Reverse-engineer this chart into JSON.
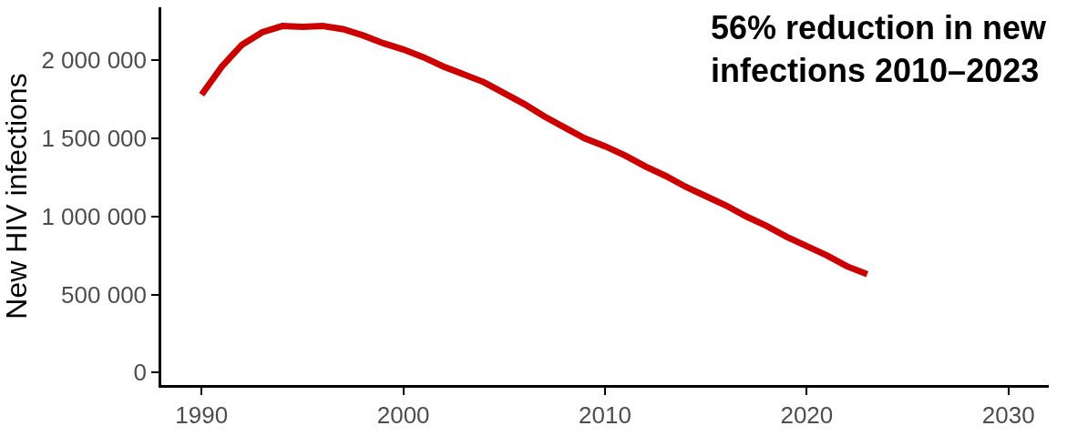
{
  "chart_data": {
    "type": "line",
    "ylabel": "New HIV infections",
    "annotations": [
      "56% reduction in new\ninfections 2010–2023"
    ],
    "x": [
      1990,
      1991,
      1992,
      1993,
      1994,
      1995,
      1996,
      1997,
      1998,
      1999,
      2000,
      2001,
      2002,
      2003,
      2004,
      2005,
      2006,
      2007,
      2008,
      2009,
      2010,
      2011,
      2012,
      2013,
      2014,
      2015,
      2016,
      2017,
      2018,
      2019,
      2020,
      2021,
      2022,
      2023
    ],
    "series": [
      {
        "color": "#cc0000",
        "values": [
          1780000,
          1960000,
          2100000,
          2180000,
          2220000,
          2215000,
          2220000,
          2200000,
          2160000,
          2110000,
          2070000,
          2020000,
          1960000,
          1910000,
          1860000,
          1790000,
          1720000,
          1640000,
          1570000,
          1500000,
          1450000,
          1390000,
          1320000,
          1260000,
          1190000,
          1130000,
          1070000,
          1000000,
          940000,
          870000,
          810000,
          750000,
          680000,
          630000
        ]
      }
    ],
    "xlim": [
      1988,
      2032
    ],
    "xticks": [
      1990,
      2000,
      2010,
      2020,
      2030
    ],
    "ylim": [
      -80000,
      2340000
    ],
    "yticks": [
      0,
      {
        "value": 500000,
        "label": "500 000"
      },
      {
        "value": 1000000,
        "label": "1 000 000"
      },
      {
        "value": 1500000,
        "label": "1 500 000"
      },
      {
        "value": 2000000,
        "label": "2 000 000"
      }
    ],
    "marker": "none",
    "line_style": "solid"
  }
}
